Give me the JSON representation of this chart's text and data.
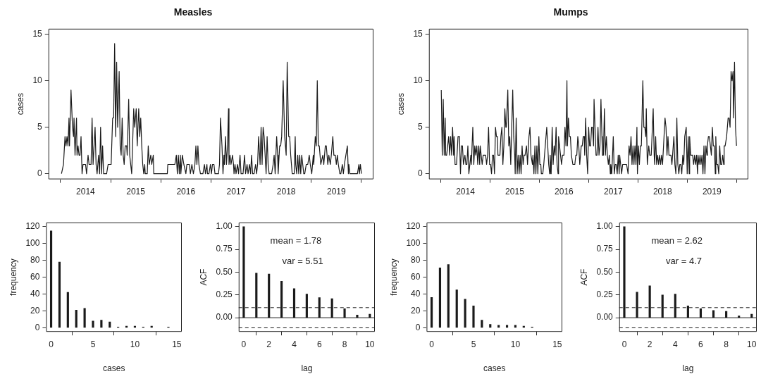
{
  "chart_data": [
    {
      "type": "line",
      "title": "Measles",
      "ylabel": "cases",
      "marker": "none",
      "xlim": [
        2013.76,
        2020.24
      ],
      "ylim": [
        -0.6,
        15.6
      ],
      "yticks": [
        0,
        5,
        10,
        15
      ],
      "xticks": [
        {
          "value": 2014,
          "label": null
        },
        {
          "value": 2014.5,
          "label": "2014"
        },
        {
          "value": 2015,
          "label": null
        },
        {
          "value": 2015.5,
          "label": "2015"
        },
        {
          "value": 2016,
          "label": null
        },
        {
          "value": 2016.5,
          "label": "2016"
        },
        {
          "value": 2017,
          "label": null
        },
        {
          "value": 2017.5,
          "label": "2017"
        },
        {
          "value": 2018,
          "label": null
        },
        {
          "value": 2018.5,
          "label": "2018"
        },
        {
          "value": 2019,
          "label": null
        },
        {
          "value": 2019.5,
          "label": "2019"
        },
        {
          "value": 2020,
          "label": null
        }
      ],
      "series": [
        {
          "color": "#1a1a1a",
          "x": [
            2014.02,
            2014.06,
            2014.09,
            2014.11,
            2014.13,
            2014.15,
            2014.17,
            2014.18,
            2014.21,
            2014.24,
            2014.26,
            2014.27,
            2014.29,
            2014.32,
            2014.33,
            2014.35,
            2014.37,
            2014.39,
            2014.41,
            2014.43,
            2014.45,
            2014.5,
            2014.52,
            2014.55,
            2014.57,
            2014.61,
            2014.63,
            2014.65,
            2014.69,
            2014.71,
            2014.73,
            2014.76,
            2014.78,
            2014.8,
            2014.82,
            2014.84,
            2014.86,
            2014.92,
            2014.95,
            2014.97,
            2015.01,
            2015.04,
            2015.06,
            2015.08,
            2015.1,
            2015.12,
            2015.14,
            2015.17,
            2015.19,
            2015.21,
            2015.23,
            2015.25,
            2015.27,
            2015.29,
            2015.32,
            2015.33,
            2015.36,
            2015.38,
            2015.4,
            2015.42,
            2015.46,
            2015.48,
            2015.51,
            2015.53,
            2015.56,
            2015.58,
            2015.6,
            2015.62,
            2015.64,
            2015.66,
            2015.68,
            2015.69,
            2015.73,
            2015.75,
            2015.77,
            2015.8,
            2015.82,
            2015.85,
            2015.86,
            2015.89,
            2016.13,
            2016.14,
            2016.17,
            2016.21,
            2016.25,
            2016.28,
            2016.31,
            2016.33,
            2016.35,
            2016.37,
            2016.39,
            2016.4,
            2016.43,
            2016.46,
            2016.5,
            2016.52,
            2016.57,
            2016.59,
            2016.62,
            2016.65,
            2016.68,
            2016.7,
            2016.72,
            2016.74,
            2016.76,
            2016.79,
            2016.84,
            2016.87,
            2016.89,
            2016.92,
            2016.93,
            2016.96,
            2016.99,
            2017.01,
            2017.03,
            2017.06,
            2017.08,
            2017.15,
            2017.17,
            2017.19,
            2017.22,
            2017.24,
            2017.26,
            2017.27,
            2017.29,
            2017.31,
            2017.33,
            2017.35,
            2017.36,
            2017.38,
            2017.4,
            2017.43,
            2017.45,
            2017.46,
            2017.48,
            2017.5,
            2017.53,
            2017.55,
            2017.58,
            2017.6,
            2017.64,
            2017.67,
            2017.69,
            2017.72,
            2017.74,
            2017.77,
            2017.79,
            2017.81,
            2017.83,
            2017.86,
            2017.89,
            2017.91,
            2017.93,
            2017.95,
            2017.98,
            2018.0,
            2018.02,
            2018.04,
            2018.06,
            2018.08,
            2018.1,
            2018.12,
            2018.14,
            2018.16,
            2018.21,
            2018.24,
            2018.26,
            2018.28,
            2018.31,
            2018.33,
            2018.34,
            2018.37,
            2018.39,
            2018.41,
            2018.44,
            2018.47,
            2018.5,
            2018.52,
            2018.55,
            2018.57,
            2018.59,
            2018.62,
            2018.66,
            2018.68,
            2018.69,
            2018.71,
            2018.73,
            2018.75,
            2018.77,
            2018.79,
            2018.81,
            2018.83,
            2018.85,
            2018.87,
            2018.9,
            2018.93,
            2018.96,
            2018.98,
            2019.01,
            2019.04,
            2019.05,
            2019.08,
            2019.1,
            2019.12,
            2019.14,
            2019.16,
            2019.19,
            2019.23,
            2019.25,
            2019.28,
            2019.3,
            2019.33,
            2019.35,
            2019.38,
            2019.4,
            2019.43,
            2019.45,
            2019.48,
            2019.5,
            2019.52,
            2019.54,
            2019.57,
            2019.59,
            2019.62,
            2019.64,
            2019.66,
            2019.69,
            2019.72,
            2019.74,
            2019.75,
            2019.77,
            2019.92,
            2019.95,
            2019.96,
            2019.98,
            2020.0
          ],
          "values": [
            0,
            1,
            4,
            3,
            4,
            3,
            6,
            3,
            9,
            5,
            4,
            6,
            2,
            6,
            2,
            3,
            2,
            2,
            4,
            0,
            1,
            1,
            0,
            2,
            1,
            1,
            6,
            1,
            5,
            1,
            0,
            2,
            0,
            5,
            0,
            3,
            0,
            0,
            1,
            1,
            1,
            6,
            6,
            14,
            4,
            12,
            5,
            11,
            3,
            2,
            6,
            2,
            1,
            3,
            3,
            2,
            8,
            2,
            1,
            0,
            7,
            5,
            7,
            3,
            7,
            4,
            6,
            3,
            1,
            0,
            1,
            0,
            0,
            3,
            1,
            2,
            1,
            2,
            0,
            0,
            0,
            1,
            1,
            1,
            1,
            1,
            2,
            0,
            2,
            0,
            2,
            0,
            2,
            1,
            0,
            1,
            1,
            0,
            1,
            0,
            1,
            3,
            1,
            3,
            1,
            0,
            0,
            1,
            0,
            1,
            0,
            0,
            1,
            0,
            1,
            1,
            0,
            0,
            1,
            6,
            3,
            0,
            2,
            1,
            4,
            1,
            3,
            7,
            1,
            2,
            1,
            2,
            1,
            0,
            1,
            0,
            1,
            0,
            2,
            0,
            0,
            2,
            0,
            1,
            0,
            1,
            0,
            2,
            0,
            0,
            1,
            0,
            1,
            4,
            1,
            5,
            1,
            5,
            4,
            2,
            0,
            4,
            1,
            0,
            0,
            1,
            2,
            0,
            4,
            2,
            0,
            3,
            3,
            4,
            10,
            4,
            2,
            12,
            4,
            4,
            2,
            0,
            0,
            4,
            1,
            0,
            2,
            0,
            2,
            0,
            2,
            1,
            0,
            0,
            1,
            1,
            2,
            1,
            0,
            2,
            1,
            4,
            3,
            10,
            3,
            3,
            1,
            2,
            1,
            3,
            3,
            1,
            2,
            1,
            2,
            4,
            2,
            2,
            1,
            2,
            1,
            0,
            0,
            1,
            0,
            1,
            2,
            3,
            0,
            1,
            0,
            0,
            1,
            0,
            1,
            0
          ]
        }
      ]
    },
    {
      "type": "line",
      "title": "Mumps",
      "ylabel": "cases",
      "marker": "none",
      "xlim": [
        2013.76,
        2020.24
      ],
      "ylim": [
        -0.6,
        15.6
      ],
      "yticks": [
        0,
        5,
        10,
        15
      ],
      "xticks": [
        {
          "value": 2014,
          "label": null
        },
        {
          "value": 2014.5,
          "label": "2014"
        },
        {
          "value": 2015,
          "label": null
        },
        {
          "value": 2015.5,
          "label": "2015"
        },
        {
          "value": 2016,
          "label": null
        },
        {
          "value": 2016.5,
          "label": "2016"
        },
        {
          "value": 2017,
          "label": null
        },
        {
          "value": 2017.5,
          "label": "2017"
        },
        {
          "value": 2018,
          "label": null
        },
        {
          "value": 2018.5,
          "label": "2018"
        },
        {
          "value": 2019,
          "label": null
        },
        {
          "value": 2019.5,
          "label": "2019"
        },
        {
          "value": 2020,
          "label": null
        }
      ],
      "series": [
        {
          "color": "#1a1a1a",
          "x": [
            2014.01,
            2014.03,
            2014.05,
            2014.07,
            2014.09,
            2014.1,
            2014.12,
            2014.14,
            2014.16,
            2014.18,
            2014.2,
            2014.22,
            2014.24,
            2014.26,
            2014.27,
            2014.29,
            2014.32,
            2014.35,
            2014.38,
            2014.4,
            2014.42,
            2014.44,
            2014.46,
            2014.49,
            2014.51,
            2014.53,
            2014.55,
            2014.57,
            2014.59,
            2014.61,
            2014.62,
            2014.65,
            2014.67,
            2014.69,
            2014.71,
            2014.73,
            2014.75,
            2014.77,
            2014.79,
            2014.8,
            2014.82,
            2014.84,
            2014.86,
            2014.91,
            2014.93,
            2014.95,
            2014.97,
            2014.99,
            2015.01,
            2015.03,
            2015.05,
            2015.07,
            2015.09,
            2015.11,
            2015.13,
            2015.15,
            2015.16,
            2015.2,
            2015.22,
            2015.24,
            2015.26,
            2015.28,
            2015.3,
            2015.32,
            2015.33,
            2015.36,
            2015.38,
            2015.4,
            2015.42,
            2015.46,
            2015.48,
            2015.5,
            2015.51,
            2015.53,
            2015.55,
            2015.57,
            2015.59,
            2015.61,
            2015.63,
            2015.65,
            2015.67,
            2015.69,
            2015.71,
            2015.74,
            2015.76,
            2015.79,
            2015.81,
            2015.83,
            2015.86,
            2015.87,
            2015.89,
            2015.91,
            2015.93,
            2015.95,
            2015.97,
            2015.99,
            2016.01,
            2016.03,
            2016.04,
            2016.07,
            2016.09,
            2016.12,
            2016.15,
            2016.17,
            2016.19,
            2016.21,
            2016.22,
            2016.24,
            2016.26,
            2016.28,
            2016.3,
            2016.32,
            2016.34,
            2016.36,
            2016.38,
            2016.39,
            2016.41,
            2016.43,
            2016.45,
            2016.47,
            2016.5,
            2016.52,
            2016.54,
            2016.56,
            2016.57,
            2016.59,
            2016.61,
            2016.63,
            2016.65,
            2016.68,
            2016.72,
            2016.74,
            2016.76,
            2016.78,
            2016.8,
            2016.82,
            2016.85,
            2016.87,
            2016.89,
            2016.91,
            2016.92,
            2016.94,
            2016.96,
            2016.98,
            2017.0,
            2017.02,
            2017.04,
            2017.06,
            2017.08,
            2017.1,
            2017.11,
            2017.13,
            2017.15,
            2017.17,
            2017.19,
            2017.21,
            2017.23,
            2017.25,
            2017.27,
            2017.28,
            2017.3,
            2017.32,
            2017.34,
            2017.36,
            2017.38,
            2017.4,
            2017.42,
            2017.44,
            2017.45,
            2017.47,
            2017.5,
            2017.52,
            2017.54,
            2017.56,
            2017.58,
            2017.6,
            2017.62,
            2017.63,
            2017.65,
            2017.67,
            2017.69,
            2017.73,
            2017.77,
            2017.8,
            2017.82,
            2017.84,
            2017.86,
            2017.88,
            2017.9,
            2017.92,
            2017.94,
            2017.96,
            2017.98,
            2017.99,
            2018.01,
            2018.03,
            2018.05,
            2018.07,
            2018.1,
            2018.12,
            2018.14,
            2018.16,
            2018.17,
            2018.19,
            2018.22,
            2018.24,
            2018.27,
            2018.31,
            2018.33,
            2018.34,
            2018.36,
            2018.38,
            2018.4,
            2018.42,
            2018.44,
            2018.46,
            2018.48,
            2018.5,
            2018.52,
            2018.55,
            2018.57,
            2018.59,
            2018.61,
            2018.63,
            2018.67,
            2018.69,
            2018.73,
            2018.75,
            2018.77,
            2018.79,
            2018.81,
            2018.83,
            2018.85,
            2018.87,
            2018.89,
            2018.91,
            2018.93,
            2018.95,
            2018.98,
            2019.0,
            2019.02,
            2019.04,
            2019.05,
            2019.07,
            2019.11,
            2019.13,
            2019.15,
            2019.17,
            2019.19,
            2019.21,
            2019.22,
            2019.24,
            2019.26,
            2019.28,
            2019.3,
            2019.32,
            2019.34,
            2019.36,
            2019.38,
            2019.4,
            2019.41,
            2019.43,
            2019.45,
            2019.47,
            2019.49,
            2019.51,
            2019.53,
            2019.55,
            2019.57,
            2019.58,
            2019.6,
            2019.62,
            2019.64,
            2019.66,
            2019.68,
            2019.7,
            2019.72,
            2019.74,
            2019.75,
            2019.77,
            2019.8,
            2019.83,
            2019.85,
            2019.87,
            2019.89,
            2019.91,
            2019.93,
            2019.94,
            2019.96,
            2019.98,
            2020.0
          ],
          "values": [
            9,
            2,
            8,
            2,
            6,
            2,
            2,
            3,
            4,
            2,
            4,
            2,
            5,
            2,
            4,
            1,
            1,
            4,
            4,
            0,
            3,
            3,
            1,
            2,
            1,
            1,
            3,
            0,
            1,
            2,
            1,
            5,
            1,
            3,
            2,
            3,
            1,
            3,
            1,
            3,
            2,
            1,
            2,
            2,
            1,
            2,
            5,
            1,
            1,
            0,
            2,
            2,
            0,
            5,
            4,
            4,
            2,
            2,
            4,
            5,
            1,
            3,
            7,
            5,
            5,
            9,
            3,
            4,
            1,
            9,
            4,
            2,
            0,
            6,
            0,
            2,
            0,
            2,
            0,
            3,
            1,
            2,
            2,
            3,
            1,
            4,
            5,
            2,
            1,
            2,
            0,
            3,
            0,
            3,
            0,
            4,
            1,
            1,
            0,
            0,
            1,
            3,
            5,
            3,
            1,
            0,
            2,
            0,
            5,
            1,
            3,
            2,
            5,
            1,
            0,
            4,
            3,
            2,
            1,
            2,
            2,
            5,
            3,
            10,
            3,
            6,
            4,
            4,
            2,
            1,
            1,
            2,
            2,
            4,
            3,
            1,
            3,
            3,
            4,
            4,
            2,
            6,
            2,
            0,
            5,
            3,
            3,
            5,
            5,
            3,
            8,
            5,
            2,
            2,
            5,
            2,
            3,
            8,
            4,
            2,
            2,
            7,
            2,
            4,
            2,
            1,
            2,
            0,
            1,
            0,
            4,
            0,
            1,
            1,
            0,
            2,
            0,
            2,
            1,
            0,
            1,
            1,
            1,
            0,
            3,
            2,
            4,
            1,
            3,
            1,
            3,
            1,
            5,
            0,
            3,
            1,
            3,
            3,
            10,
            5,
            5,
            4,
            7,
            1,
            3,
            2,
            2,
            7,
            2,
            1,
            4,
            1,
            2,
            1,
            2,
            1,
            2,
            1,
            3,
            6,
            5,
            2,
            4,
            2,
            2,
            1,
            4,
            1,
            0,
            6,
            1,
            0,
            1,
            1,
            0,
            2,
            1,
            4,
            5,
            0,
            4,
            0,
            4,
            2,
            2,
            1,
            2,
            1,
            2,
            0,
            2,
            1,
            2,
            1,
            2,
            0,
            3,
            0,
            3,
            2,
            3,
            4,
            4,
            3,
            2,
            5,
            3,
            3,
            0,
            4,
            1,
            1,
            0,
            3,
            1,
            1,
            2,
            1,
            3,
            3,
            4,
            6,
            6,
            5,
            11,
            10,
            11,
            6,
            12,
            5,
            3
          ]
        }
      ]
    },
    {
      "type": "bar",
      "xlabel": "cases",
      "ylabel": "frequency",
      "xlim": [
        -0.6,
        15.6
      ],
      "ylim": [
        -4.8,
        124.8
      ],
      "xticks": [
        0,
        5,
        10,
        15
      ],
      "yticks": [
        0,
        20,
        40,
        60,
        80,
        100,
        120
      ],
      "x": [
        0,
        1,
        2,
        3,
        4,
        5,
        6,
        7,
        8,
        9,
        10,
        11,
        12,
        14
      ],
      "values": [
        115,
        78,
        42,
        21,
        23,
        8,
        9,
        7,
        1,
        2,
        2,
        1,
        2,
        1
      ],
      "color": "#1a1a1a"
    },
    {
      "type": "bar",
      "xlabel": "lag",
      "ylabel": "ACF",
      "xlim": [
        -0.4,
        10.4
      ],
      "ylim": [
        -0.155,
        1.045
      ],
      "xticks": [
        0,
        2,
        4,
        6,
        8,
        10
      ],
      "yticks": [
        {
          "value": 0,
          "label": "0.00"
        },
        {
          "value": 0.25,
          "label": "0.25"
        },
        {
          "value": 0.5,
          "label": "0.50"
        },
        {
          "value": 0.75,
          "label": "0.75"
        },
        {
          "value": 1,
          "label": "1.00"
        }
      ],
      "x": [
        0,
        1,
        2,
        3,
        4,
        5,
        6,
        7,
        8,
        9,
        10
      ],
      "values": [
        1.0,
        0.49,
        0.48,
        0.4,
        0.32,
        0.26,
        0.22,
        0.21,
        0.1,
        0.03,
        0.04
      ],
      "color": "#1a1a1a",
      "ref_lines": [
        {
          "axis": "y",
          "value": 0,
          "line_style": "solid",
          "color": "#1a1a1a"
        },
        {
          "axis": "y",
          "value": 0.111,
          "line_style": "dashed",
          "color": "#1a1a1a"
        },
        {
          "axis": "y",
          "value": -0.111,
          "line_style": "dashed",
          "color": "#1a1a1a"
        }
      ],
      "annotations": [
        "mean = 1.78",
        "var = 5.51"
      ]
    },
    {
      "type": "bar",
      "xlabel": "cases",
      "ylabel": "frequency",
      "xlim": [
        -0.6,
        15.6
      ],
      "ylim": [
        -4.8,
        124.8
      ],
      "xticks": [
        0,
        5,
        10,
        15
      ],
      "yticks": [
        0,
        20,
        40,
        60,
        80,
        100,
        120
      ],
      "x": [
        0,
        1,
        2,
        3,
        4,
        5,
        6,
        7,
        8,
        9,
        10,
        11,
        12
      ],
      "values": [
        36,
        71,
        75,
        45,
        34,
        26,
        9,
        4,
        3,
        3,
        3,
        2,
        1
      ],
      "color": "#1a1a1a"
    },
    {
      "type": "bar",
      "xlabel": "lag",
      "ylabel": "ACF",
      "xlim": [
        -0.4,
        10.4
      ],
      "ylim": [
        -0.155,
        1.045
      ],
      "xticks": [
        0,
        2,
        4,
        6,
        8,
        10
      ],
      "yticks": [
        {
          "value": 0,
          "label": "0.00"
        },
        {
          "value": 0.25,
          "label": "0.25"
        },
        {
          "value": 0.5,
          "label": "0.50"
        },
        {
          "value": 0.75,
          "label": "0.75"
        },
        {
          "value": 1,
          "label": "1.00"
        }
      ],
      "x": [
        0,
        1,
        2,
        3,
        4,
        5,
        6,
        7,
        8,
        9,
        10
      ],
      "values": [
        1.0,
        0.28,
        0.35,
        0.25,
        0.26,
        0.13,
        0.1,
        0.08,
        0.07,
        0.02,
        0.04
      ],
      "color": "#1a1a1a",
      "ref_lines": [
        {
          "axis": "y",
          "value": 0,
          "line_style": "solid",
          "color": "#1a1a1a"
        },
        {
          "axis": "y",
          "value": 0.111,
          "line_style": "dashed",
          "color": "#1a1a1a"
        },
        {
          "axis": "y",
          "value": -0.111,
          "line_style": "dashed",
          "color": "#1a1a1a"
        }
      ],
      "annotations": [
        "mean = 2.62",
        "var = 4.7"
      ]
    }
  ]
}
